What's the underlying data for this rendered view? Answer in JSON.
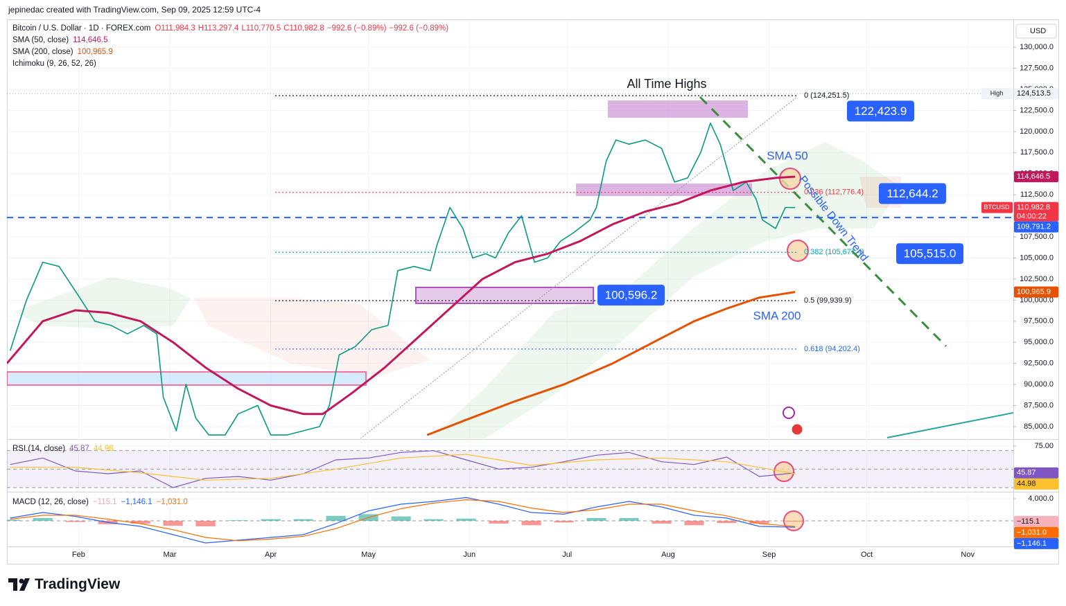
{
  "header": {
    "caption": "jepinedac created with TradingView.com, Sep 09, 2025 12:59 UTC-4"
  },
  "footer": {
    "brand": "TradingView"
  },
  "chart_data": [
    {
      "type": "line",
      "title": "Bitcoin / U.S. Dollar · 1D · FOREX.com",
      "quote": [
        "O111,984.3",
        "H113,297.4",
        "L110,770.5",
        "C110,982.8",
        "−992.6 (−0.89%)",
        "−992.6 (−0.89%)"
      ],
      "currency": "USD",
      "indicator": "Ichimoku (9, 26, 52, 26)",
      "grid": true,
      "xlim": [
        9,
        318
      ],
      "ylim": [
        83600,
        133300
      ],
      "yticks": [
        {
          "value": 85000,
          "label": "85,000.0"
        },
        {
          "value": 87500,
          "label": "87,500.0"
        },
        {
          "value": 90000,
          "label": "90,000.0"
        },
        {
          "value": 92500,
          "label": "92,500.0"
        },
        {
          "value": 95000,
          "label": "95,000.0"
        },
        {
          "value": 97500,
          "label": "97,500.0"
        },
        {
          "value": 100000,
          "label": "100,000.0"
        },
        {
          "value": 102500,
          "label": "102,500.0"
        },
        {
          "value": 105000,
          "label": "105,000.0"
        },
        {
          "value": 107500,
          "label": "107,500.0"
        },
        {
          "value": 110000,
          "label": "110,000.0"
        },
        {
          "value": 112500,
          "label": "112,500.0"
        },
        {
          "value": 115000,
          "label": "115,000.0"
        },
        {
          "value": 117500,
          "label": "117,500.0"
        },
        {
          "value": 120000,
          "label": "120,000.0"
        },
        {
          "value": 122500,
          "label": "122,500.0"
        },
        {
          "value": 125000,
          "label": "125,000.0"
        },
        {
          "value": 127500,
          "label": "127,500.0"
        },
        {
          "value": 130000,
          "label": "130,000.0"
        }
      ],
      "series": [
        {
          "name": "BTCUSD",
          "color": "#089981",
          "label_color": "#f23645",
          "last_label": "110,982.8",
          "countdown": "04:00:22",
          "x": [
            10,
            15,
            20,
            25,
            31,
            36,
            41,
            46,
            51,
            55,
            57,
            61,
            64,
            67,
            71,
            76,
            80,
            86,
            90,
            95,
            100,
            105,
            108,
            111,
            116,
            121,
            126,
            129,
            134,
            139,
            141,
            145,
            149,
            152,
            156,
            159,
            163,
            167,
            171,
            175,
            179,
            183,
            188,
            190,
            193,
            196,
            200,
            205,
            210,
            214,
            218,
            222,
            225,
            228,
            232,
            236,
            239,
            241,
            245,
            248,
            251
          ],
          "values": [
            94000,
            100000,
            104500,
            104000,
            100500,
            97500,
            97000,
            96000,
            97000,
            96000,
            88500,
            84500,
            90000,
            86000,
            84000,
            84000,
            86500,
            87500,
            84000,
            84000,
            84500,
            85000,
            87500,
            93500,
            94500,
            96500,
            97000,
            103500,
            104000,
            103500,
            106500,
            111000,
            108500,
            105000,
            105500,
            105000,
            108000,
            110000,
            104500,
            105000,
            107000,
            108000,
            109500,
            111000,
            116500,
            119000,
            118500,
            119000,
            118000,
            114000,
            114500,
            117500,
            121000,
            118500,
            113000,
            114000,
            112000,
            109500,
            108500,
            111000,
            110982.8
          ]
        },
        {
          "name": "SMA (50, close)",
          "color": "#c2185b",
          "label_color": "#c2185b",
          "last_label": "114,646.5",
          "x": [
            9,
            20,
            30,
            40,
            50,
            60,
            70,
            80,
            90,
            100,
            106,
            115,
            125,
            135,
            145,
            155,
            165,
            175,
            185,
            195,
            205,
            215,
            225,
            235,
            245,
            251
          ],
          "values": [
            92500,
            97500,
            98800,
            98500,
            97500,
            95000,
            92000,
            89500,
            87500,
            86500,
            86500,
            89000,
            92000,
            95500,
            99000,
            102500,
            104500,
            105500,
            107000,
            109000,
            110500,
            111500,
            113000,
            114000,
            114500,
            114646.5
          ]
        },
        {
          "name": "SMA (200, close)",
          "color": "#e65100",
          "label_color": "#e65100",
          "last_label": "100,965.9",
          "x": [
            138,
            150,
            165,
            180,
            195,
            210,
            220,
            230,
            240,
            251
          ],
          "values": [
            84000,
            85800,
            88000,
            90000,
            92500,
            95500,
            97500,
            99000,
            100300,
            100965.9
          ]
        }
      ],
      "axis_labels": [
        {
          "value": 124513.5,
          "label": "124,513.5",
          "tag": "High",
          "color": "#f0f3fa",
          "text_color": "#131722",
          "line_color": "#9598a1",
          "dash": "1 3"
        },
        {
          "value": 109791.2,
          "label": "109,791.2",
          "color": "#2962ff",
          "text_color": "#ffffff",
          "line_color": "#2962ff",
          "dash": "9 7"
        }
      ],
      "fib_levels": [
        {
          "value": 124251.5,
          "label": "0 (124,251.5)",
          "color": "#131722"
        },
        {
          "value": 112776.4,
          "label": "0.236 (112,776.4)",
          "color": "#f23645"
        },
        {
          "value": 105677.4,
          "label": "0.382 (105,677.4)",
          "color": "#00acc1"
        },
        {
          "value": 99939.9,
          "label": "0.5 (99,939.9)",
          "color": "#131722"
        },
        {
          "value": 94202.4,
          "label": "0.618 (94,202.4)",
          "color": "#2962ff"
        }
      ],
      "callouts": [
        {
          "value": 122423.9,
          "label": "122,423.9"
        },
        {
          "value": 112644.2,
          "label": "112,644.2"
        },
        {
          "value": 105515.0,
          "label": "105,515.0"
        },
        {
          "value": 100596.2,
          "label": "100,596.2"
        }
      ],
      "annotations": [
        "All Time Highs",
        "SMA 50",
        "SMA 200",
        "Possible Down Trend"
      ]
    },
    {
      "type": "line",
      "title": "RSI (14, close)",
      "xlim": [
        9,
        318
      ],
      "ylim": [
        27,
        81
      ],
      "yticks": [
        {
          "value": 75,
          "label": "75.00"
        }
      ],
      "bands": [
        30,
        50,
        70
      ],
      "band_color": "#7e57c2",
      "series": [
        {
          "color": "#7e57c2",
          "last_label": "45.87",
          "text_color": "#ffffff",
          "x": [
            10,
            20,
            30,
            40,
            50,
            60,
            70,
            80,
            90,
            100,
            110,
            120,
            130,
            140,
            150,
            160,
            170,
            180,
            190,
            200,
            210,
            220,
            230,
            240,
            251
          ],
          "values": [
            55,
            62,
            48,
            45,
            48,
            30,
            40,
            42,
            38,
            45,
            60,
            62,
            68,
            70,
            60,
            50,
            52,
            58,
            65,
            68,
            58,
            55,
            63,
            42,
            45.87
          ]
        },
        {
          "color": "#fbc02d",
          "last_label": "44.98",
          "text_color": "#131722",
          "x": [
            10,
            30,
            50,
            70,
            90,
            110,
            130,
            150,
            170,
            190,
            210,
            230,
            251
          ],
          "values": [
            52,
            52,
            46,
            38,
            40,
            50,
            62,
            66,
            54,
            60,
            62,
            58,
            44.98
          ]
        }
      ]
    },
    {
      "type": "line",
      "title": "MACD (12, 26, close)",
      "xlim": [
        9,
        318
      ],
      "ylim": [
        -4500,
        5000
      ],
      "yticks": [
        {
          "value": 4000,
          "label": "4,000.0"
        }
      ],
      "xticks": [
        {
          "value": 31,
          "label": "Feb"
        },
        {
          "value": 59,
          "label": "Mar"
        },
        {
          "value": 90,
          "label": "Apr"
        },
        {
          "value": 120,
          "label": "May"
        },
        {
          "value": 151,
          "label": "Jun"
        },
        {
          "value": 181,
          "label": "Jul"
        },
        {
          "value": 212,
          "label": "Aug"
        },
        {
          "value": 243,
          "label": "Sep"
        },
        {
          "value": 273,
          "label": "Oct"
        },
        {
          "value": 304,
          "label": "Nov"
        }
      ],
      "histogram": {
        "colors": [
          "#26a69a",
          "#ef5350"
        ],
        "label_color": "#f7b2bb",
        "last_label": "−115.1",
        "x": [
          10,
          20,
          30,
          40,
          50,
          60,
          70,
          80,
          90,
          100,
          110,
          120,
          130,
          140,
          150,
          160,
          170,
          180,
          190,
          200,
          210,
          220,
          230,
          240,
          251
        ],
        "values": [
          200,
          500,
          -200,
          -600,
          -500,
          -900,
          -1000,
          100,
          300,
          300,
          900,
          1200,
          800,
          300,
          400,
          -500,
          -800,
          -300,
          500,
          500,
          -500,
          -800,
          -400,
          -500,
          -115.1
        ]
      },
      "series": [
        {
          "color": "#2962ff",
          "last_label": "−1,146.1",
          "text_color": "#ffffff",
          "x": [
            10,
            20,
            30,
            40,
            50,
            60,
            70,
            80,
            90,
            100,
            110,
            120,
            130,
            140,
            150,
            160,
            170,
            180,
            190,
            200,
            210,
            220,
            230,
            240,
            251
          ],
          "values": [
            500,
            1500,
            800,
            -300,
            -1000,
            -2500,
            -4000,
            -3500,
            -3000,
            -2500,
            -500,
            1800,
            3000,
            3500,
            4200,
            3000,
            1500,
            1200,
            2500,
            3500,
            2500,
            1000,
            500,
            -1000,
            -1146.1
          ]
        },
        {
          "color": "#ff6d00",
          "last_label": "−1,031.0",
          "text_color": "#ffffff",
          "x": [
            10,
            20,
            30,
            40,
            50,
            60,
            70,
            80,
            90,
            100,
            110,
            120,
            130,
            140,
            150,
            160,
            170,
            180,
            190,
            200,
            210,
            220,
            230,
            240,
            251
          ],
          "values": [
            300,
            1000,
            1000,
            300,
            -500,
            -1600,
            -3000,
            -3600,
            -3300,
            -2800,
            -1400,
            600,
            2200,
            3200,
            3800,
            3500,
            2300,
            1500,
            2000,
            3000,
            3000,
            1800,
            900,
            -500,
            -1031.0
          ]
        }
      ]
    }
  ]
}
